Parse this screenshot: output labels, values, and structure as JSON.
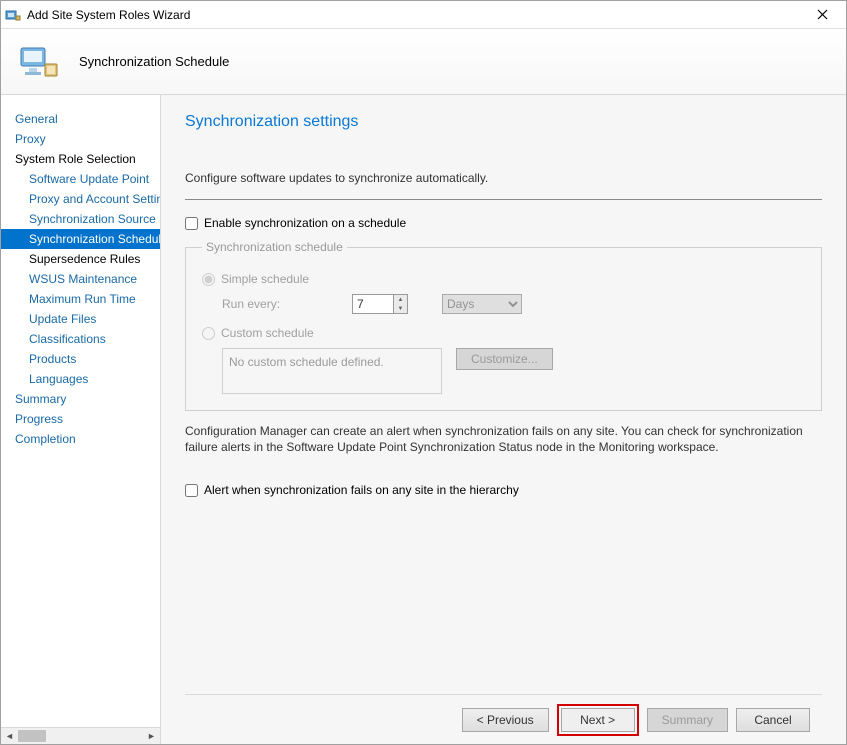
{
  "window": {
    "title": "Add Site System Roles Wizard",
    "header_title": "Synchronization Schedule"
  },
  "sidebar": {
    "items": [
      {
        "label": "General",
        "level": "top"
      },
      {
        "label": "Proxy",
        "level": "top"
      },
      {
        "label": "System Role Selection",
        "level": "top_black"
      },
      {
        "label": "Software Update Point",
        "level": "sub"
      },
      {
        "label": "Proxy and Account Settings",
        "level": "sub"
      },
      {
        "label": "Synchronization Source",
        "level": "sub"
      },
      {
        "label": "Synchronization Schedule",
        "level": "sub",
        "selected": true
      },
      {
        "label": "Supersedence Rules",
        "level": "sub_black"
      },
      {
        "label": "WSUS Maintenance",
        "level": "sub"
      },
      {
        "label": "Maximum Run Time",
        "level": "sub"
      },
      {
        "label": "Update Files",
        "level": "sub"
      },
      {
        "label": "Classifications",
        "level": "sub"
      },
      {
        "label": "Products",
        "level": "sub"
      },
      {
        "label": "Languages",
        "level": "sub"
      },
      {
        "label": "Summary",
        "level": "top"
      },
      {
        "label": "Progress",
        "level": "top"
      },
      {
        "label": "Completion",
        "level": "top"
      }
    ]
  },
  "content": {
    "heading": "Synchronization settings",
    "intro": "Configure software updates to synchronize automatically.",
    "enable_checkbox_label": "Enable synchronization on a schedule",
    "enable_checked": false,
    "fieldset_legend": "Synchronization schedule",
    "radio_simple_label": "Simple schedule",
    "radio_custom_label": "Custom schedule",
    "run_every_label": "Run every:",
    "run_every_value": "7",
    "run_every_unit": "Days",
    "custom_schedule_text": "No custom schedule defined.",
    "customize_button": "Customize...",
    "alert_note": "Configuration Manager can create an alert when synchronization fails on any site. You can check for synchronization failure alerts in the Software Update Point Synchronization Status node in the Monitoring workspace.",
    "alert_checkbox_label": "Alert when synchronization fails on any site in the hierarchy",
    "alert_checked": false
  },
  "footer": {
    "previous": "< Previous",
    "next": "Next >",
    "summary": "Summary",
    "cancel": "Cancel"
  },
  "colors": {
    "accent": "#0a78d4",
    "selection_bg": "#0173cc",
    "highlight_border": "#d40000",
    "panel_bg": "#f6f6f6",
    "border": "#d8d8d8",
    "disabled_text": "#9a9a9a"
  }
}
